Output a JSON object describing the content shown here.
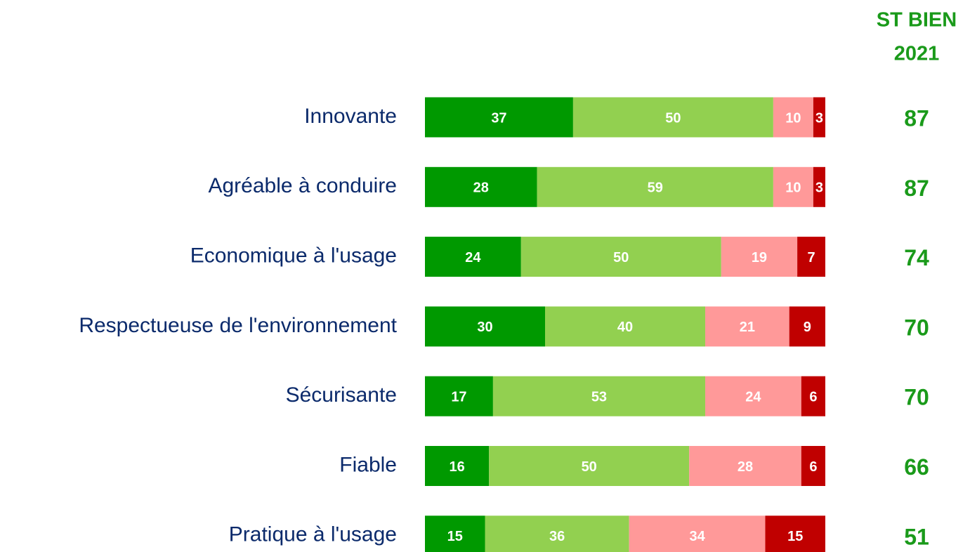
{
  "chart_data": {
    "type": "stacked_barh",
    "categories": [
      "Innovante",
      "Agréable à conduire",
      "Economique à l'usage",
      "Respectueuse de l'environnement",
      "Sécurisante",
      "Fiable",
      "Pratique à l'usage"
    ],
    "series": [
      {
        "color": "#009900",
        "values": [
          37,
          28,
          24,
          30,
          17,
          16,
          15
        ]
      },
      {
        "color": "#92d050",
        "values": [
          50,
          59,
          50,
          40,
          53,
          50,
          36
        ]
      },
      {
        "color": "#ff9999",
        "values": [
          10,
          10,
          19,
          21,
          24,
          28,
          34
        ]
      },
      {
        "color": "#c00000",
        "values": [
          3,
          3,
          7,
          9,
          6,
          6,
          15
        ]
      }
    ],
    "xlim": [
      0,
      100
    ],
    "summary_header": [
      "ST BIEN",
      "2021"
    ],
    "summary_values": [
      87,
      87,
      74,
      70,
      70,
      66,
      51
    ],
    "summary_color": "#1a9a1a"
  }
}
